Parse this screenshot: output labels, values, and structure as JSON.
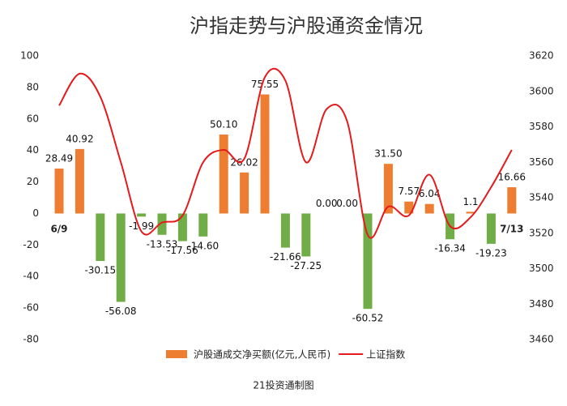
{
  "chart_data": {
    "type": "bar-line",
    "title": "沪指走势与沪股通资金情况",
    "source": "21投资通制图",
    "categories": [
      "6/9",
      null,
      null,
      null,
      null,
      null,
      null,
      null,
      null,
      null,
      null,
      null,
      null,
      null,
      null,
      null,
      null,
      null,
      null,
      null,
      null,
      null,
      "7/13"
    ],
    "series": [
      {
        "name": "沪股通成交净买额(亿元,人民币)",
        "type": "bar",
        "color": "#ed7d31",
        "negative_color": "#70ad47",
        "values": [
          28.49,
          40.92,
          -30.15,
          -56.08,
          -1.99,
          -13.53,
          -17.56,
          -14.6,
          50.1,
          26.02,
          75.55,
          -21.66,
          -27.25,
          0,
          0,
          -60.52,
          31.5,
          7.57,
          6.04,
          -16.34,
          1.1,
          -19.23,
          16.66
        ],
        "value_labels": [
          "28.49",
          "40.92",
          "-30.15",
          "-56.08",
          "-1.99",
          "-13.53",
          "-17.56",
          "-14.60",
          "50.10",
          "26.02",
          "75.55",
          "-21.66",
          "-27.25",
          "0.00",
          "0.00",
          "-60.52",
          "31.50",
          "7.57",
          "6.04",
          "-16.34",
          "1.1",
          "-19.23",
          "16.66"
        ]
      },
      {
        "name": "上证指数",
        "type": "line",
        "axis": "y2",
        "color": "#e41a1c",
        "values": [
          3592,
          3610,
          3597,
          3560,
          3521,
          3526,
          3530,
          3560,
          3567,
          3562,
          3608,
          3606,
          3560,
          3590,
          3583,
          3519,
          3535,
          3530,
          3553,
          3524,
          3529,
          3546,
          3567
        ]
      }
    ],
    "ylim": [
      -80,
      100
    ],
    "yticks": [
      -80,
      -60,
      -40,
      -20,
      0,
      20,
      40,
      60,
      80,
      100
    ],
    "y2lim": [
      3460,
      3620
    ],
    "y2ticks": [
      3460,
      3480,
      3500,
      3520,
      3540,
      3560,
      3580,
      3600,
      3620
    ],
    "grid": false
  }
}
